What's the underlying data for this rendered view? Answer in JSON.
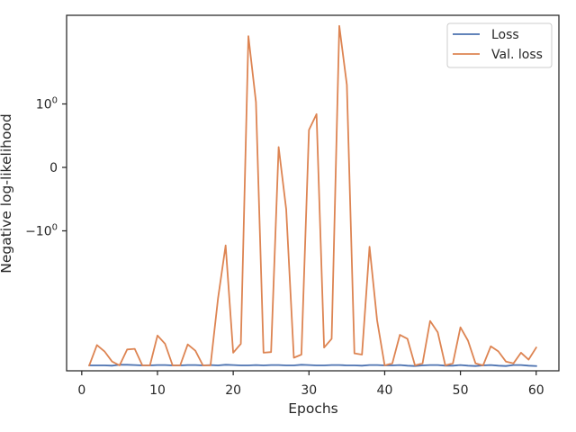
{
  "chart_data": {
    "type": "line",
    "title": "",
    "xlabel": "Epochs",
    "ylabel": "Negative log-likelihood",
    "yscale": "symlog",
    "xlim": [
      -2,
      63
    ],
    "xticks": [
      0,
      10,
      20,
      30,
      40,
      50,
      60
    ],
    "yticks": [
      {
        "value": 1,
        "label": "10",
        "sup": "0"
      },
      {
        "value": 0,
        "label": "0",
        "sup": ""
      },
      {
        "value": -1,
        "label": "−10",
        "sup": "0"
      }
    ],
    "grid": false,
    "legend_position": "top-right",
    "colors": {
      "Loss": "#4c72b0",
      "Val. loss": "#dd8452",
      "axes": "#262626"
    },
    "x": [
      1,
      2,
      3,
      4,
      5,
      6,
      7,
      8,
      9,
      10,
      11,
      12,
      13,
      14,
      15,
      16,
      17,
      18,
      19,
      20,
      21,
      22,
      23,
      24,
      25,
      26,
      27,
      28,
      29,
      30,
      31,
      32,
      33,
      34,
      35,
      36,
      37,
      38,
      39,
      40,
      41,
      42,
      43,
      44,
      45,
      46,
      47,
      48,
      49,
      50,
      51,
      52,
      53,
      54,
      55,
      56,
      57,
      58,
      59,
      60
    ],
    "series": [
      {
        "name": "Loss",
        "values": [
          -3.12,
          -3.12,
          -3.12,
          -3.125,
          -3.11,
          -3.11,
          -3.115,
          -3.12,
          -3.12,
          -3.115,
          -3.115,
          -3.12,
          -3.12,
          -3.115,
          -3.115,
          -3.12,
          -3.115,
          -3.12,
          -3.11,
          -3.115,
          -3.12,
          -3.12,
          -3.115,
          -3.12,
          -3.115,
          -3.115,
          -3.12,
          -3.12,
          -3.11,
          -3.115,
          -3.12,
          -3.12,
          -3.115,
          -3.115,
          -3.12,
          -3.12,
          -3.125,
          -3.115,
          -3.115,
          -3.12,
          -3.12,
          -3.115,
          -3.125,
          -3.13,
          -3.12,
          -3.115,
          -3.115,
          -3.125,
          -3.125,
          -3.115,
          -3.125,
          -3.13,
          -3.12,
          -3.115,
          -3.125,
          -3.13,
          -3.115,
          -3.115,
          -3.125,
          -3.13
        ]
      },
      {
        "name": "Val. loss",
        "values": [
          -3.12,
          -2.8,
          -2.9,
          -3.06,
          -3.12,
          -2.87,
          -2.86,
          -3.12,
          -3.12,
          -2.65,
          -2.78,
          -3.12,
          -3.12,
          -2.79,
          -2.89,
          -3.12,
          -3.12,
          -2.06,
          -1.23,
          -2.92,
          -2.78,
          2.07,
          1.03,
          -2.92,
          -2.91,
          0.32,
          -0.66,
          -3.0,
          -2.95,
          0.59,
          0.84,
          -2.84,
          -2.7,
          2.23,
          1.3,
          -2.93,
          -2.95,
          -1.25,
          -2.41,
          -3.12,
          -3.09,
          -2.64,
          -2.7,
          -3.12,
          -3.09,
          -2.42,
          -2.6,
          -3.12,
          -3.09,
          -2.52,
          -2.73,
          -3.09,
          -3.12,
          -2.82,
          -2.9,
          -3.06,
          -3.09,
          -2.92,
          -3.03,
          -2.84
        ]
      }
    ]
  }
}
